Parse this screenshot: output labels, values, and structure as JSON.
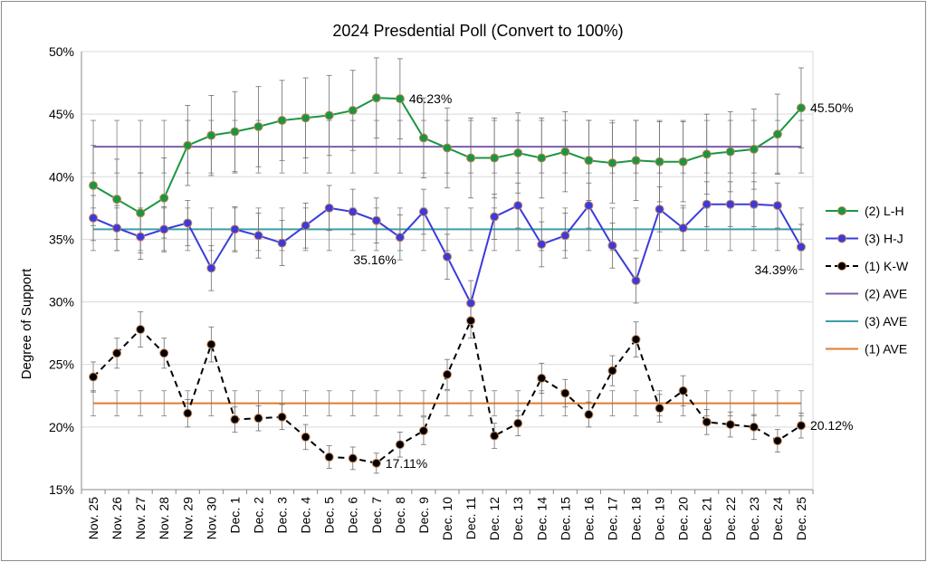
{
  "chart_data": {
    "type": "line",
    "title": "2024 Presdential Poll (Convert to 100%)",
    "ylabel": "Degree of Support",
    "xlabel": "",
    "ylim": [
      15,
      50
    ],
    "yticks": [
      "15%",
      "20%",
      "25%",
      "30%",
      "35%",
      "40%",
      "45%",
      "50%"
    ],
    "grid": "horizontal",
    "legend_position": "right",
    "categories": [
      "Nov. 25",
      "Nov. 26",
      "Nov. 27",
      "Nov. 28",
      "Nov. 29",
      "Nov. 30",
      "Dec. 1",
      "Dec. 2",
      "Dec. 3",
      "Dec. 4",
      "Dec. 5",
      "Dec. 6",
      "Dec. 7",
      "Dec. 8",
      "Dec. 9",
      "Dec. 10",
      "Dec. 11",
      "Dec. 12",
      "Dec. 13",
      "Dec. 14",
      "Dec. 15",
      "Dec. 16",
      "Dec. 17",
      "Dec. 18",
      "Dec. 19",
      "Dec. 20",
      "Dec. 21",
      "Dec. 22",
      "Dec. 23",
      "Dec. 24",
      "Dec. 25"
    ],
    "series": [
      {
        "name": "(2) L-H",
        "color": "#1a9641",
        "style": "solid",
        "values": [
          39.3,
          38.2,
          37.1,
          38.3,
          42.5,
          43.3,
          43.6,
          44.0,
          44.5,
          44.7,
          44.9,
          45.3,
          46.3,
          46.23,
          43.1,
          42.3,
          41.5,
          41.5,
          41.9,
          41.5,
          42.0,
          41.3,
          41.1,
          41.3,
          41.2,
          41.2,
          41.8,
          42.0,
          42.2,
          43.4,
          45.5
        ],
        "err": [
          3.2,
          3.2,
          3.2,
          3.2,
          3.2,
          3.2,
          3.2,
          3.2,
          3.2,
          3.2,
          3.2,
          3.2,
          3.2,
          3.2,
          3.2,
          3.2,
          3.2,
          3.2,
          3.2,
          3.2,
          3.2,
          3.2,
          3.2,
          3.2,
          3.2,
          3.2,
          3.2,
          3.2,
          3.2,
          3.2,
          3.2
        ]
      },
      {
        "name": "(3) H-J",
        "color": "#3b3bdc",
        "style": "solid",
        "values": [
          36.7,
          35.9,
          35.2,
          35.8,
          36.3,
          32.7,
          35.8,
          35.3,
          34.7,
          36.1,
          37.5,
          37.2,
          36.5,
          35.16,
          37.2,
          33.6,
          29.9,
          36.8,
          37.7,
          34.6,
          35.3,
          37.7,
          34.5,
          31.7,
          37.4,
          35.9,
          37.8,
          37.8,
          37.8,
          37.7,
          34.39
        ],
        "err": [
          1.8,
          1.8,
          1.8,
          1.8,
          1.8,
          1.8,
          1.8,
          1.8,
          1.8,
          1.8,
          1.8,
          1.8,
          1.8,
          1.8,
          1.8,
          1.8,
          1.8,
          1.8,
          1.8,
          1.8,
          1.8,
          1.8,
          1.8,
          1.8,
          1.8,
          1.8,
          1.8,
          1.8,
          1.8,
          1.8,
          1.8
        ]
      },
      {
        "name": "(1) K-W",
        "color": "#000000",
        "style": "dashed",
        "values": [
          24.0,
          25.9,
          27.8,
          25.9,
          21.1,
          26.6,
          20.6,
          20.7,
          20.8,
          19.2,
          17.6,
          17.5,
          17.11,
          18.6,
          19.7,
          24.2,
          28.5,
          19.3,
          20.3,
          23.9,
          22.7,
          21.0,
          24.5,
          27.0,
          21.5,
          22.9,
          20.4,
          20.2,
          20.0,
          18.9,
          20.12
        ],
        "err": [
          1.2,
          1.2,
          1.4,
          1.2,
          1.1,
          1.4,
          1.0,
          1.0,
          1.0,
          1.0,
          0.9,
          0.9,
          0.8,
          1.0,
          1.1,
          1.2,
          1.4,
          1.0,
          1.0,
          1.2,
          1.1,
          1.0,
          1.2,
          1.4,
          1.1,
          1.2,
          1.0,
          1.0,
          1.0,
          0.9,
          1.0
        ]
      }
    ],
    "averages": [
      {
        "name": "(2) AVE",
        "value": 42.4,
        "color": "#7b5da8",
        "err": 2.1
      },
      {
        "name": "(3) AVE",
        "value": 35.8,
        "color": "#3a9fa8",
        "err": 1.7
      },
      {
        "name": "(1) AVE",
        "value": 21.9,
        "color": "#e07b2c",
        "err": 1.0
      }
    ],
    "annotations": [
      {
        "text": "46.23%",
        "series": 0,
        "index": 13,
        "placement": "right"
      },
      {
        "text": "45.50%",
        "series": 0,
        "index": 30,
        "placement": "right"
      },
      {
        "text": "35.16%",
        "series": 1,
        "index": 13,
        "placement": "below-left"
      },
      {
        "text": "34.39%",
        "series": 1,
        "index": 30,
        "placement": "below-left"
      },
      {
        "text": "17.11%",
        "series": 2,
        "index": 12,
        "placement": "right"
      },
      {
        "text": "20.12%",
        "series": 2,
        "index": 30,
        "placement": "right"
      }
    ]
  }
}
